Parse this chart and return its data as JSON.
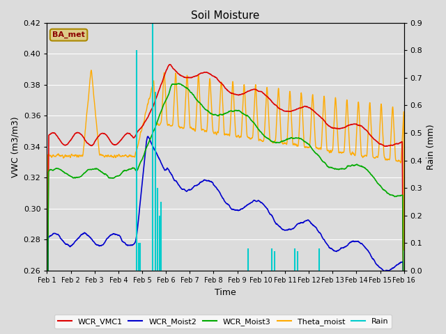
{
  "title": "Soil Moisture",
  "xlabel": "Time",
  "ylabel_left": "VWC (m3/m3)",
  "ylabel_right": "Rain (mm)",
  "ylim_left": [
    0.26,
    0.42
  ],
  "ylim_right": [
    0.0,
    0.9
  ],
  "yticks_left": [
    0.26,
    0.28,
    0.3,
    0.32,
    0.34,
    0.36,
    0.38,
    0.4,
    0.42
  ],
  "yticks_right": [
    0.0,
    0.1,
    0.2,
    0.3,
    0.4,
    0.5,
    0.6,
    0.7,
    0.8,
    0.9
  ],
  "xtick_labels": [
    "Feb 1",
    "Feb 2",
    "Feb 3",
    "Feb 4",
    "Feb 5",
    "Feb 6",
    "Feb 7",
    "Feb 8",
    "Feb 9",
    "Feb 10",
    "Feb 11",
    "Feb 12",
    "Feb 13",
    "Feb 14",
    "Feb 15",
    "Feb 16"
  ],
  "fig_bg": "#dcdcdc",
  "plot_bg": "#dcdcdc",
  "line_colors": [
    "#dd0000",
    "#0000cc",
    "#00aa00",
    "#ffaa00",
    "#00cccc"
  ],
  "legend_labels": [
    "WCR_VMC1",
    "WCR_Moist2",
    "WCR_Moist3",
    "Theta_moist",
    "Rain"
  ],
  "station_label": "BA_met",
  "station_label_color": "#8b0000",
  "station_box_color": "#ddcc88",
  "station_box_edge": "#aa8800"
}
